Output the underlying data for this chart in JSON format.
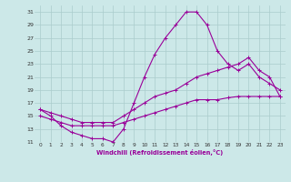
{
  "xlabel": "Windchill (Refroidissement éolien,°C)",
  "xlim": [
    -0.5,
    23.5
  ],
  "ylim": [
    11,
    32
  ],
  "yticks": [
    11,
    13,
    15,
    17,
    19,
    21,
    23,
    25,
    27,
    29,
    31
  ],
  "xticks": [
    0,
    1,
    2,
    3,
    4,
    5,
    6,
    7,
    8,
    9,
    10,
    11,
    12,
    13,
    14,
    15,
    16,
    17,
    18,
    19,
    20,
    21,
    22,
    23
  ],
  "bg_color": "#cce8e8",
  "grid_color": "#aacccc",
  "line_color": "#990099",
  "line1_x": [
    0,
    1,
    2,
    3,
    4,
    5,
    6,
    7,
    8,
    9,
    10,
    11,
    12,
    13,
    14,
    15,
    16,
    17,
    18,
    19,
    20,
    21,
    22,
    23
  ],
  "line1_y": [
    16,
    15,
    13.5,
    12.5,
    12,
    11.5,
    11.5,
    11,
    13,
    17,
    21,
    24.5,
    27,
    29,
    31,
    31,
    29,
    25,
    23,
    22,
    23,
    21,
    20,
    19
  ],
  "line2_x": [
    0,
    1,
    2,
    3,
    4,
    5,
    6,
    7,
    8,
    9,
    10,
    11,
    12,
    13,
    14,
    15,
    16,
    17,
    18,
    19,
    20,
    21,
    22,
    23
  ],
  "line2_y": [
    16,
    15.5,
    15,
    14.5,
    14,
    14,
    14,
    14,
    15,
    16,
    17,
    18,
    18.5,
    19,
    20,
    21,
    21.5,
    22,
    22.5,
    23,
    24,
    22,
    21,
    18
  ],
  "line3_x": [
    0,
    1,
    2,
    3,
    4,
    5,
    6,
    7,
    8,
    9,
    10,
    11,
    12,
    13,
    14,
    15,
    16,
    17,
    18,
    19,
    20,
    21,
    22,
    23
  ],
  "line3_y": [
    15,
    14.5,
    14,
    13.5,
    13.5,
    13.5,
    13.5,
    13.5,
    14,
    14.5,
    15,
    15.5,
    16,
    16.5,
    17,
    17.5,
    17.5,
    17.5,
    17.8,
    18,
    18,
    18,
    18,
    18
  ]
}
